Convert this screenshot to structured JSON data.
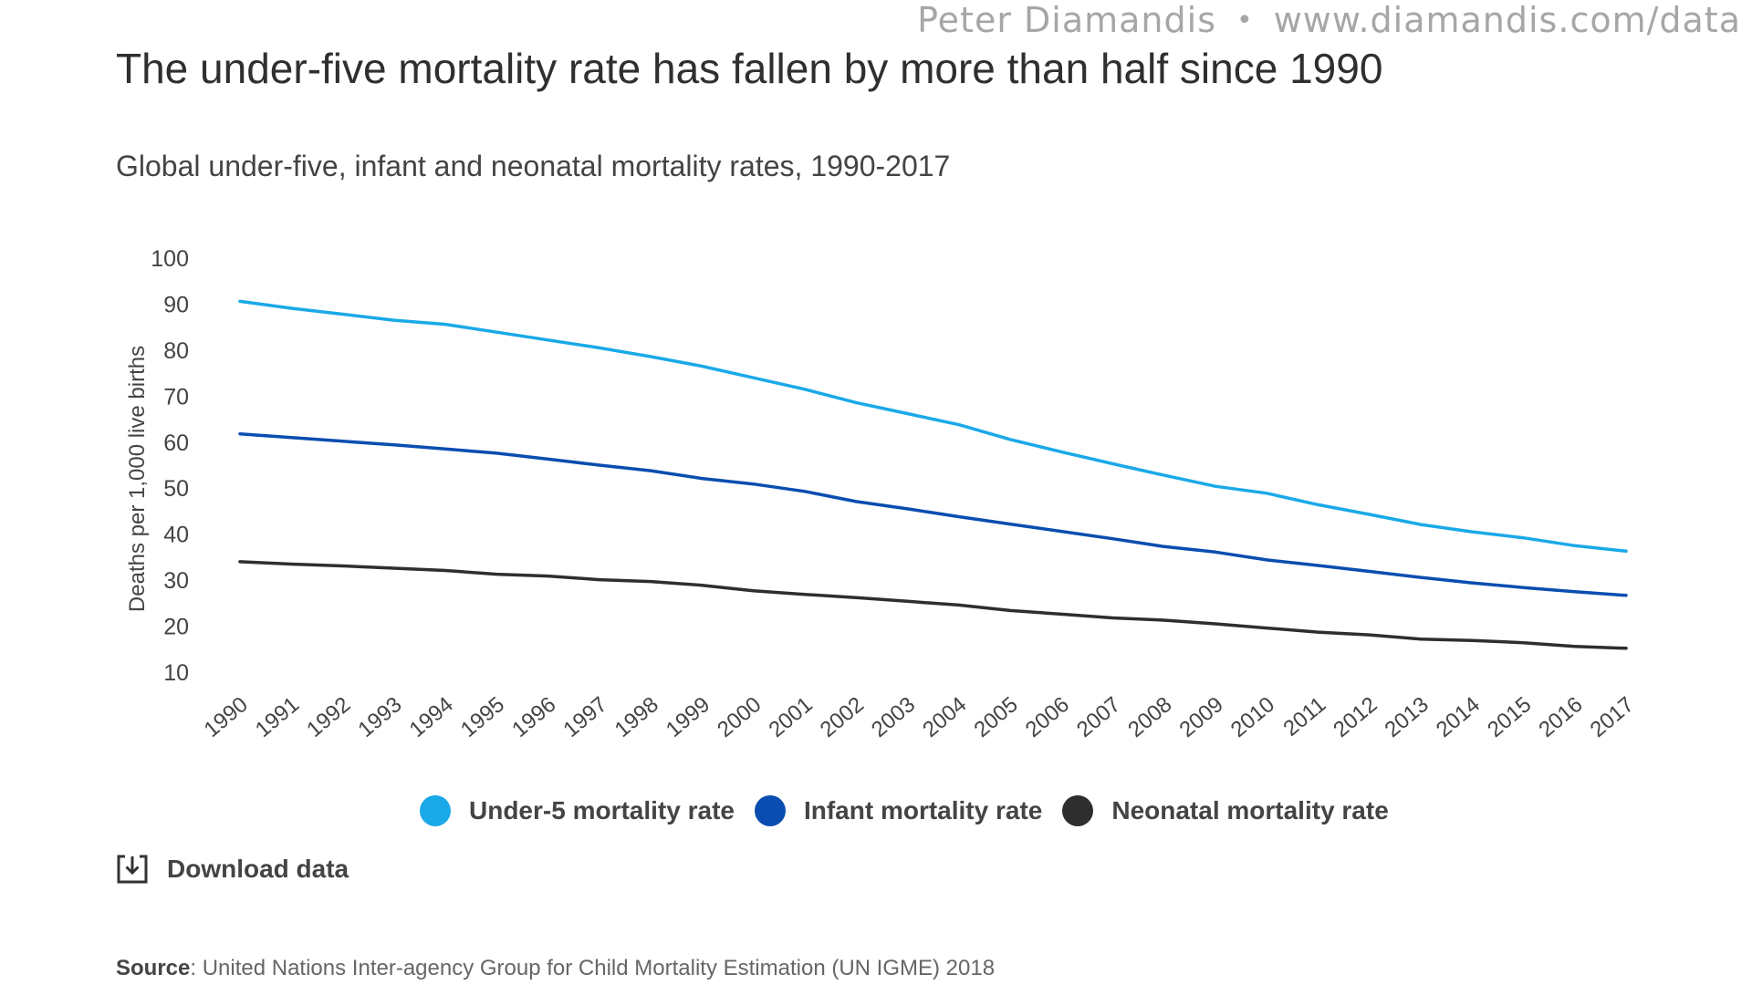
{
  "watermark": {
    "author": "Peter Diamandis",
    "separator": "•",
    "url": "www.diamandis.com/data"
  },
  "title": "The under-five mortality rate has fallen by more than half since 1990",
  "subtitle": "Global under-five, infant and neonatal mortality rates, 1990-2017",
  "download_label": "Download data",
  "source": {
    "label": "Source",
    "text": ": United Nations Inter-agency Group for Child Mortality Estimation (UN IGME) 2018"
  },
  "chart_data": {
    "type": "line",
    "title": "Global under-five, infant and neonatal mortality rates, 1990-2017",
    "xlabel": "",
    "ylabel": "Deaths per 1,000 live births",
    "ylim": [
      10,
      100
    ],
    "yticks": [
      100,
      90,
      80,
      70,
      60,
      50,
      40,
      30,
      20,
      10
    ],
    "grid": false,
    "legend_position": "bottom",
    "categories": [
      "1990",
      "1991",
      "1992",
      "1993",
      "1994",
      "1995",
      "1996",
      "1997",
      "1998",
      "1999",
      "2000",
      "2001",
      "2002",
      "2003",
      "2004",
      "2005",
      "2006",
      "2007",
      "2008",
      "2009",
      "2010",
      "2011",
      "2012",
      "2013",
      "2014",
      "2015",
      "2016",
      "2017"
    ],
    "series": [
      {
        "name": "Under-5 mortality rate",
        "color": "#1aa9e8",
        "values": [
          90.6,
          89.1,
          87.8,
          86.5,
          85.6,
          83.9,
          82.2,
          80.5,
          78.6,
          76.5,
          74.0,
          71.5,
          68.6,
          66.2,
          63.8,
          60.6,
          57.9,
          55.3,
          52.8,
          50.4,
          48.9,
          46.4,
          44.3,
          42.1,
          40.5,
          39.2,
          37.5,
          36.3
        ]
      },
      {
        "name": "Infant mortality rate",
        "color": "#0a4db0",
        "values": [
          61.8,
          61.0,
          60.2,
          59.4,
          58.5,
          57.6,
          56.3,
          55.0,
          53.8,
          52.1,
          50.9,
          49.3,
          47.1,
          45.5,
          43.8,
          42.2,
          40.6,
          39.0,
          37.3,
          36.1,
          34.4,
          33.2,
          31.9,
          30.6,
          29.4,
          28.4,
          27.5,
          26.7
        ]
      },
      {
        "name": "Neonatal mortality rate",
        "color": "#2e2e2e",
        "values": [
          34.0,
          33.5,
          33.1,
          32.6,
          32.1,
          31.3,
          30.9,
          30.1,
          29.7,
          28.9,
          27.7,
          26.9,
          26.2,
          25.4,
          24.6,
          23.4,
          22.6,
          21.8,
          21.3,
          20.5,
          19.6,
          18.7,
          18.1,
          17.2,
          16.9,
          16.4,
          15.6,
          15.2
        ]
      }
    ]
  }
}
